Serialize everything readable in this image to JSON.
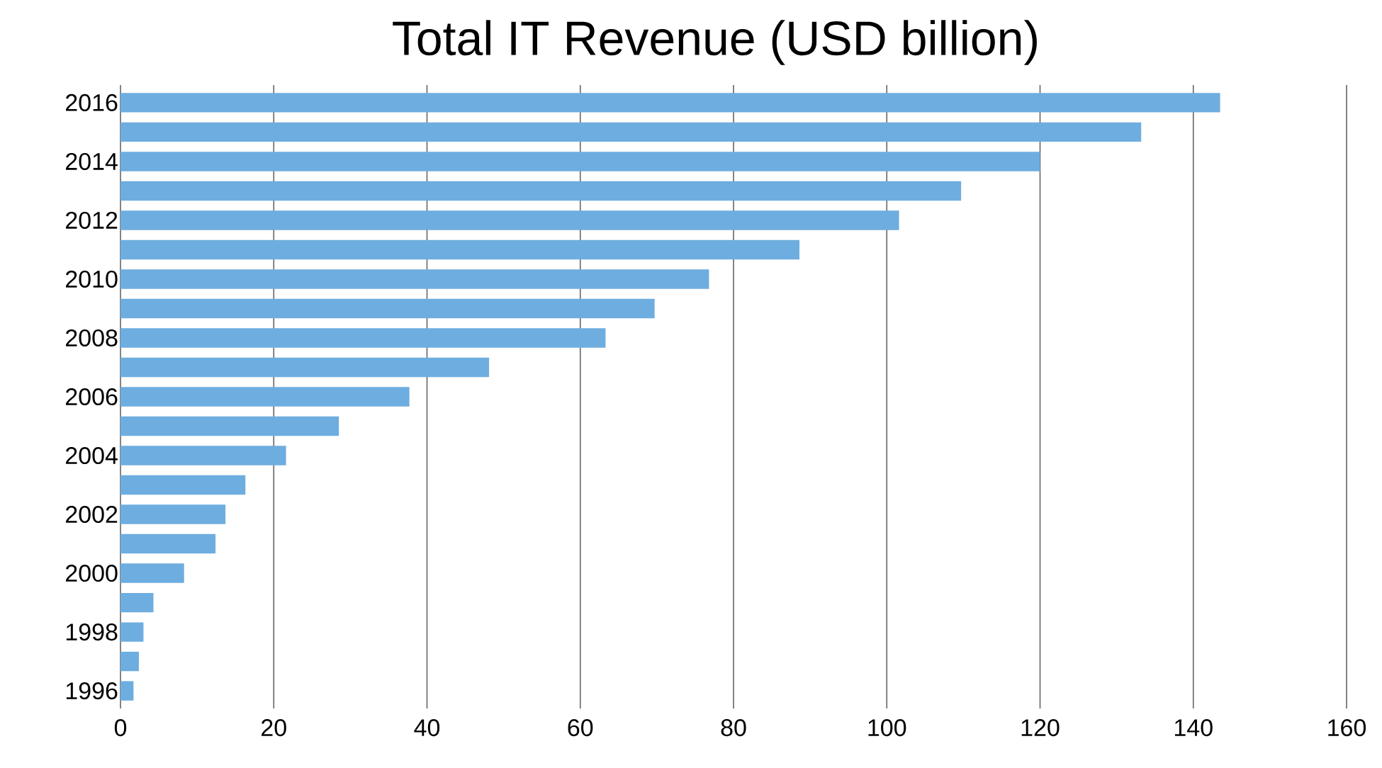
{
  "chart_data": {
    "type": "bar",
    "orientation": "horizontal",
    "title": "Total IT Revenue (USD billion)",
    "categories": [
      "2016",
      null,
      "2014",
      null,
      "2012",
      null,
      "2010",
      null,
      "2008",
      null,
      "2006",
      null,
      "2004",
      null,
      "2002",
      null,
      "2000",
      null,
      "1998",
      null,
      "1996"
    ],
    "values": [
      143.5,
      133.2,
      120.0,
      109.7,
      101.6,
      88.6,
      76.8,
      69.7,
      63.3,
      48.1,
      37.7,
      28.5,
      21.6,
      16.3,
      13.7,
      12.4,
      8.3,
      4.3,
      3.0,
      2.4,
      1.7
    ],
    "color": "#6eaddf",
    "xlim": [
      0,
      160
    ],
    "xticks": [
      0,
      20,
      40,
      60,
      80,
      100,
      120,
      140,
      160
    ],
    "grid": "x"
  }
}
